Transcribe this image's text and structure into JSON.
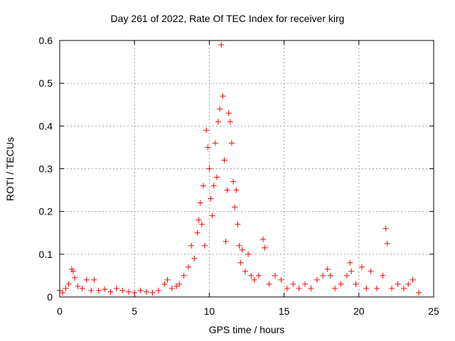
{
  "chart_data": {
    "type": "scatter",
    "title": "Day 261 of 2022, Rate Of TEC Index for receiver kirg",
    "xlabel": "GPS time / hours",
    "ylabel": "ROTI / TECUs",
    "xlim": [
      0,
      25
    ],
    "ylim": [
      0,
      0.6
    ],
    "xticks": [
      "0",
      "5",
      "10",
      "15",
      "20",
      "25"
    ],
    "yticks": [
      "0",
      "0.1",
      "0.2",
      "0.3",
      "0.4",
      "0.5",
      "0.6"
    ],
    "grid": true,
    "marker": "+",
    "color": "#ff0000",
    "series": [
      {
        "x": [
          0.0,
          0.2,
          0.4,
          0.6,
          0.8,
          0.9,
          1.0,
          1.2,
          1.5,
          1.8,
          2.1,
          2.3,
          2.6,
          3.0,
          3.4,
          3.8,
          4.2,
          4.6,
          5.0,
          5.4,
          5.8,
          6.2,
          6.6,
          7.0,
          7.2,
          7.5,
          7.8,
          8.0,
          8.3,
          8.6,
          8.8,
          9.0,
          9.2,
          9.3,
          9.4,
          9.5,
          9.6,
          9.7,
          9.8,
          9.9,
          10.0,
          10.1,
          10.2,
          10.3,
          10.4,
          10.5,
          10.6,
          10.7,
          10.8,
          10.9,
          11.0,
          11.1,
          11.2,
          11.3,
          11.4,
          11.5,
          11.6,
          11.7,
          11.8,
          11.9,
          12.0,
          12.1,
          12.2,
          12.4,
          12.6,
          12.8,
          13.0,
          13.3,
          13.6,
          13.7,
          14.0,
          14.4,
          14.8,
          15.2,
          15.6,
          16.0,
          16.4,
          16.8,
          17.2,
          17.6,
          17.9,
          18.1,
          18.4,
          18.8,
          19.2,
          19.4,
          19.5,
          19.8,
          20.2,
          20.5,
          20.8,
          21.2,
          21.6,
          21.8,
          21.9,
          22.2,
          22.6,
          23.0,
          23.3,
          23.6,
          24.0
        ],
        "y": [
          0.015,
          0.01,
          0.02,
          0.03,
          0.065,
          0.06,
          0.045,
          0.025,
          0.02,
          0.04,
          0.015,
          0.04,
          0.015,
          0.018,
          0.012,
          0.02,
          0.015,
          0.012,
          0.01,
          0.015,
          0.012,
          0.01,
          0.015,
          0.03,
          0.04,
          0.02,
          0.025,
          0.03,
          0.05,
          0.07,
          0.12,
          0.09,
          0.15,
          0.18,
          0.22,
          0.17,
          0.26,
          0.12,
          0.39,
          0.35,
          0.3,
          0.23,
          0.19,
          0.26,
          0.36,
          0.28,
          0.41,
          0.44,
          0.59,
          0.47,
          0.32,
          0.13,
          0.25,
          0.43,
          0.41,
          0.36,
          0.27,
          0.21,
          0.25,
          0.17,
          0.12,
          0.08,
          0.11,
          0.06,
          0.1,
          0.05,
          0.04,
          0.05,
          0.135,
          0.115,
          0.03,
          0.05,
          0.04,
          0.02,
          0.03,
          0.02,
          0.03,
          0.02,
          0.04,
          0.05,
          0.065,
          0.05,
          0.02,
          0.03,
          0.05,
          0.08,
          0.06,
          0.03,
          0.07,
          0.02,
          0.06,
          0.02,
          0.05,
          0.16,
          0.125,
          0.02,
          0.03,
          0.02,
          0.03,
          0.04,
          0.01
        ]
      }
    ]
  }
}
